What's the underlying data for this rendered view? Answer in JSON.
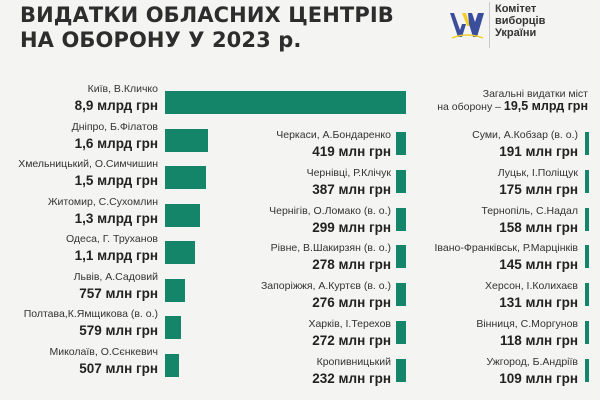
{
  "header": {
    "title_line1": "ВИДАТКИ ОБЛАСНИХ ЦЕНТРІВ",
    "title_line2": "НА ОБОРОНУ У 2023 р.",
    "org_line1": "Комітет",
    "org_line2": "виборців",
    "org_line3": "України"
  },
  "colors": {
    "bar": "#158569",
    "logo_blue": "#3a4e9c",
    "logo_yellow": "#f3cf2a"
  },
  "total": {
    "label": "Загальні видатки міст",
    "prefix": "на оборону –",
    "value": "19,5 млрд грн"
  },
  "chart_data": {
    "type": "bar",
    "unit": "млн грн",
    "categories": [
      "Київ, В.Кличко",
      "Дніпро, Б.Філатов",
      "Хмельницький, О.Симчишин",
      "Житомир, С.Сухомлин",
      "Одеса, Г. Труханов",
      "Львів, А.Садовий",
      "Полтава,К.Ямщикова (в. о.)",
      "Миколаїв, О.Сєнкевич",
      "Черкаси, А.Бондаренко",
      "Чернівці, Р.Клічук",
      "Чернігів, О.Ломако (в. о.)",
      "Рівне, В.Шакирзян (в. о.)",
      "Запоріжжя, А.Куртєв (в. о.)",
      "Харків, І.Терехов",
      "Кропивницький",
      "Суми, А.Кобзар (в. о.)",
      "Луцьк, І.Поліщук",
      "Тернопіль, С.Надал",
      "Івано-Франківськ, Р.Марцінків",
      "Херсон, І.Колихаєв",
      "Вінниця, С.Моргунов",
      "Ужгород, Б.Андріїв"
    ],
    "values": [
      8900,
      1600,
      1500,
      1300,
      1100,
      757,
      579,
      507,
      419,
      387,
      299,
      278,
      276,
      272,
      232,
      191,
      175,
      158,
      145,
      131,
      118,
      109
    ],
    "value_labels": [
      "8,9 млрд грн",
      "1,6 млрд грн",
      "1,5 млрд грн",
      "1,3 млрд грн",
      "1,1 млрд грн",
      "757 млн грн",
      "579 млн грн",
      "507 млн грн",
      "419 млн грн",
      "387 млн грн",
      "299 млн грн",
      "278 млн грн",
      "276 млн грн",
      "272 млн грн",
      "232 млн грн",
      "191 млн грн",
      "175 млн грн",
      "158 млн грн",
      "145 млн грн",
      "131 млн грн",
      "118 млн грн",
      "109 млн грн"
    ]
  }
}
